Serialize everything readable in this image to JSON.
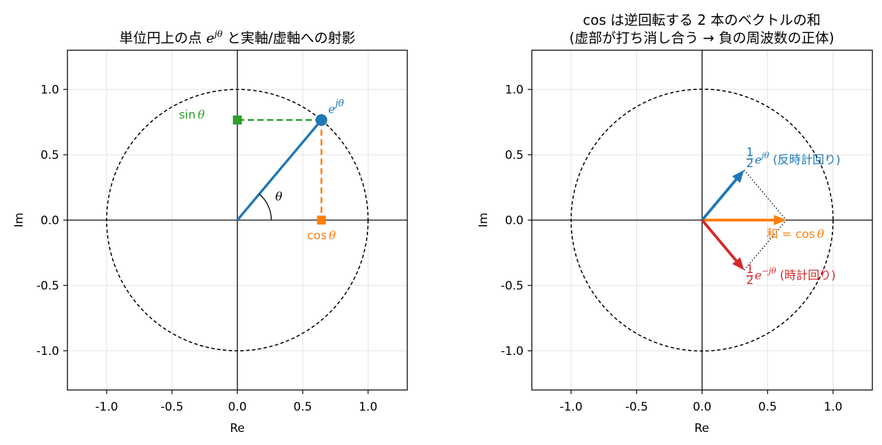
{
  "colors": {
    "blue": "#1f77b4",
    "orange": "#ff7f0e",
    "green": "#2ca02c",
    "red": "#d62728",
    "grid": "#e0e0e0",
    "black": "#000000"
  },
  "chart_data": [
    {
      "type": "scatter",
      "title": "単位円上の点 e^{jθ} と実軸/虚軸への射影",
      "title_parts": {
        "pre": "単位円上の点 ",
        "math_base": "e",
        "math_sup": "jθ",
        "post": " と実軸/虚軸への射影"
      },
      "xlabel": "Re",
      "ylabel": "Im",
      "xlim": [
        -1.3,
        1.3
      ],
      "ylim": [
        -1.3,
        1.3
      ],
      "xticks": [
        -1.0,
        -0.5,
        0.0,
        0.5,
        1.0
      ],
      "yticks": [
        -1.0,
        -0.5,
        0.0,
        0.5,
        1.0
      ],
      "xtick_labels": [
        "-1.0",
        "-0.5",
        "0.0",
        "0.5",
        "1.0"
      ],
      "ytick_labels": [
        "-1.0",
        "-0.5",
        "0.0",
        "0.5",
        "1.0"
      ],
      "grid": true,
      "unit_circle": {
        "radius": 1,
        "style": "dashed"
      },
      "theta_deg": 50,
      "point": {
        "x": 0.643,
        "y": 0.766
      },
      "projections": {
        "cos_point": {
          "x": 0.643,
          "y": 0
        },
        "sin_point": {
          "x": 0,
          "y": 0.766
        }
      },
      "annotations": {
        "point_label_base": "e",
        "point_label_sup": "jθ",
        "cos_label_fn": "cos",
        "cos_label_var": "θ",
        "sin_label_fn": "sin",
        "sin_label_var": "θ",
        "angle_label": "θ"
      }
    },
    {
      "type": "scatter",
      "title_line1": "cos は逆回転する 2 本のベクトルの和",
      "title_line2": "(虚部が打ち消し合う → 負の周波数の正体)",
      "xlabel": "Re",
      "ylabel": "Im",
      "xlim": [
        -1.3,
        1.3
      ],
      "ylim": [
        -1.3,
        1.3
      ],
      "xticks": [
        -1.0,
        -0.5,
        0.0,
        0.5,
        1.0
      ],
      "yticks": [
        -1.0,
        -0.5,
        0.0,
        0.5,
        1.0
      ],
      "xtick_labels": [
        "-1.0",
        "-0.5",
        "0.0",
        "0.5",
        "1.0"
      ],
      "ytick_labels": [
        "-1.0",
        "-0.5",
        "0.0",
        "0.5",
        "1.0"
      ],
      "grid": true,
      "unit_circle": {
        "radius": 1,
        "style": "dashed"
      },
      "vectors": [
        {
          "x": 0.321,
          "y": 0.383,
          "color": "blue"
        },
        {
          "x": 0.321,
          "y": -0.383,
          "color": "red"
        },
        {
          "x": 0.643,
          "y": 0.0,
          "color": "orange"
        }
      ],
      "annotations": {
        "pos_frac_num": "1",
        "pos_frac_den": "2",
        "pos_base": "e",
        "pos_sup": "jθ",
        "pos_text": " (反時計回り)",
        "neg_frac_num": "1",
        "neg_frac_den": "2",
        "neg_base": "e",
        "neg_sup": "−jθ",
        "neg_text": " (時計回り)",
        "sum_text": "和 = ",
        "sum_fn": "cos",
        "sum_var": "θ"
      }
    }
  ]
}
